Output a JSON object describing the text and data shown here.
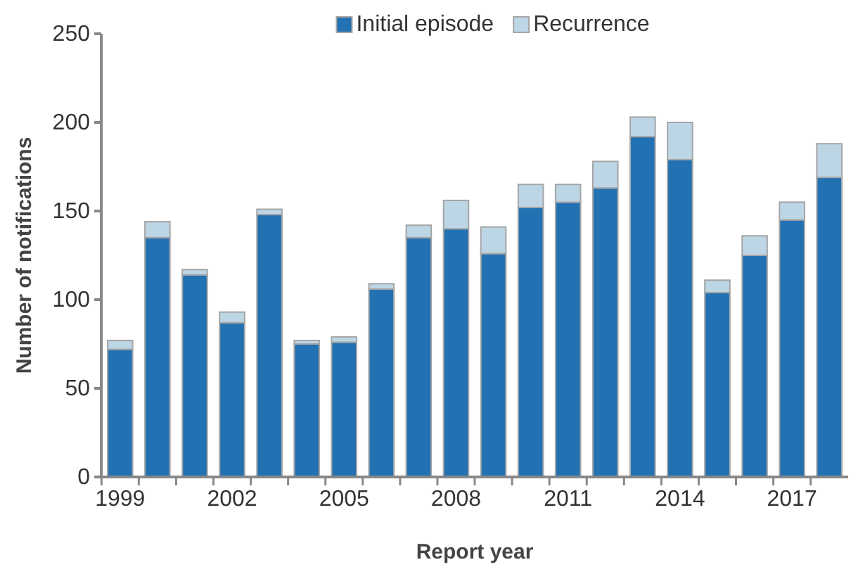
{
  "chart_data": {
    "type": "bar",
    "stacked": true,
    "xlabel": "Report year",
    "ylabel": "Number of notifications",
    "categories": [
      "1999",
      null,
      null,
      "2002",
      null,
      null,
      "2005",
      null,
      null,
      "2008",
      null,
      null,
      "2011",
      null,
      null,
      "2014",
      null,
      null,
      "2017",
      null
    ],
    "series": [
      {
        "name": "Initial episode",
        "color": "#2271b3",
        "values": [
          72,
          135,
          114,
          87,
          148,
          75,
          76,
          106,
          135,
          140,
          126,
          152,
          155,
          163,
          192,
          179,
          104,
          125,
          145,
          169
        ]
      },
      {
        "name": "Recurrence",
        "color": "#bdd6e6",
        "values": [
          5,
          9,
          3,
          6,
          3,
          2,
          3,
          3,
          7,
          16,
          15,
          13,
          10,
          15,
          11,
          21,
          7,
          11,
          10,
          19
        ]
      }
    ],
    "ylim": [
      0,
      250
    ],
    "yticks": [
      0,
      50,
      100,
      150,
      200,
      250
    ],
    "grid": false,
    "legend": "top"
  }
}
